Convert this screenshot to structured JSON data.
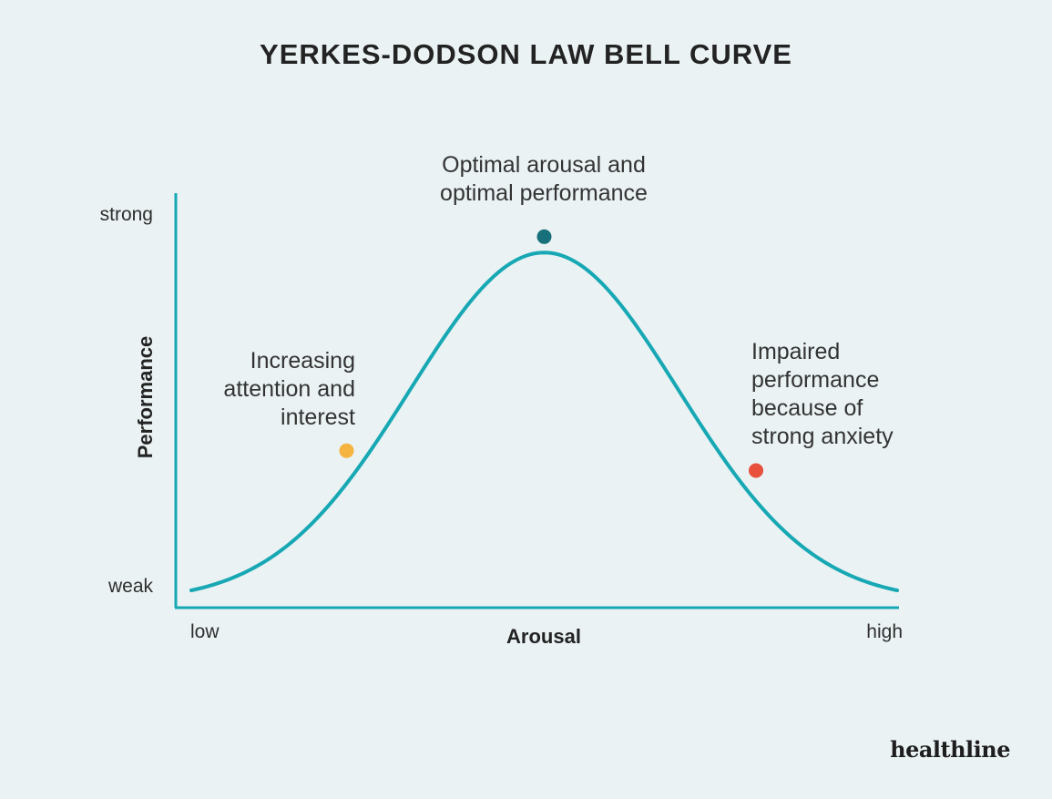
{
  "title": "YERKES-DODSON LAW BELL CURVE",
  "brand": "healthline",
  "colors": {
    "background": "#eaf2f4",
    "curve": "#17a8b4",
    "axis": "#17a8b4",
    "peak_point": "#17707a",
    "increasing_point": "#f5b440",
    "impaired_point": "#e8513c"
  },
  "chart_data": {
    "type": "line",
    "xlabel": "Arousal",
    "ylabel": "Performance",
    "x_tick_labels": [
      "low",
      "high"
    ],
    "y_tick_labels": [
      "weak",
      "strong"
    ],
    "xlim": [
      0,
      1
    ],
    "ylim": [
      0,
      1
    ],
    "series": [
      {
        "peak_x": 0.5,
        "peak_y": 0.88,
        "base_y": 0.0,
        "spread": 0.19
      }
    ],
    "annotations": [
      {
        "name": "increasing",
        "lines": [
          "Increasing",
          "attention and",
          "interest"
        ],
        "x": 0.22,
        "y": 0.38,
        "color_key": "increasing_point"
      },
      {
        "name": "optimal",
        "lines": [
          "Optimal arousal and",
          "optimal performance"
        ],
        "x": 0.5,
        "y": 0.92,
        "color_key": "peak_point"
      },
      {
        "name": "impaired",
        "lines": [
          "Impaired",
          "performance",
          "because of",
          "strong anxiety"
        ],
        "x": 0.8,
        "y": 0.33,
        "color_key": "impaired_point"
      }
    ],
    "grid": false,
    "legend": "none"
  }
}
